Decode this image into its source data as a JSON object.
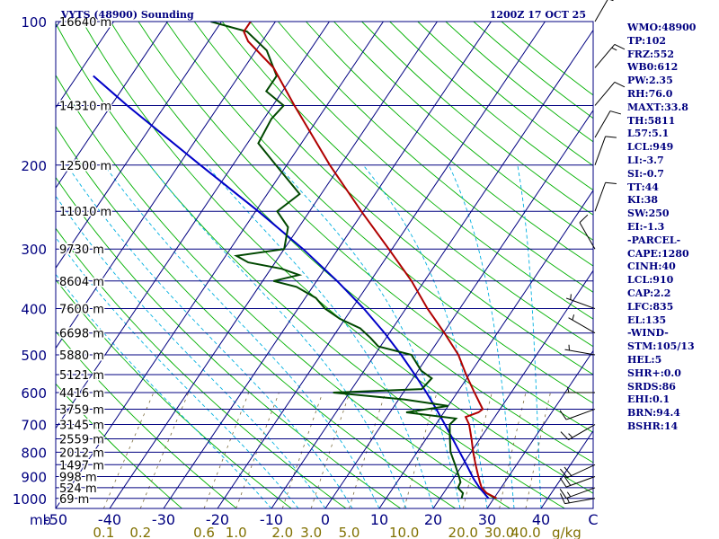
{
  "chart_data": {
    "type": "skew-t",
    "title": "VYTS (48900) Sounding",
    "time": "1200Z 17 OCT 25",
    "pressure_levels": [
      {
        "p": 100,
        "label": "100",
        "height": "16640 m"
      },
      {
        "p": 150,
        "label": "",
        "height": "14310 m"
      },
      {
        "p": 200,
        "label": "200",
        "height": "12500 m"
      },
      {
        "p": 250,
        "label": "",
        "height": "11010 m"
      },
      {
        "p": 300,
        "label": "300",
        "height": "9730 m"
      },
      {
        "p": 350,
        "label": "",
        "height": "8604 m"
      },
      {
        "p": 400,
        "label": "400",
        "height": "7600 m"
      },
      {
        "p": 450,
        "label": "",
        "height": "6698 m"
      },
      {
        "p": 500,
        "label": "500",
        "height": "5880 m"
      },
      {
        "p": 550,
        "label": "",
        "height": "5121 m"
      },
      {
        "p": 600,
        "label": "600",
        "height": "4416 m"
      },
      {
        "p": 650,
        "label": "",
        "height": "3759 m"
      },
      {
        "p": 700,
        "label": "700",
        "height": "3145 m"
      },
      {
        "p": 750,
        "label": "",
        "height": "2559 m"
      },
      {
        "p": 800,
        "label": "800",
        "height": "2012 m"
      },
      {
        "p": 850,
        "label": "",
        "height": "1497 m"
      },
      {
        "p": 900,
        "label": "900",
        "height": "998 m"
      },
      {
        "p": 950,
        "label": "",
        "height": "524 m"
      },
      {
        "p": 1000,
        "label": "1000",
        "height": "69 m"
      }
    ],
    "pressure_unit": "mb",
    "temperature_ticks": [
      -50,
      -40,
      -30,
      -20,
      -10,
      0,
      10,
      20,
      30,
      40
    ],
    "temperature_tick_labels": [
      "-50",
      "-40",
      "-30",
      "-20",
      "-10",
      "0",
      "10",
      "20",
      "30",
      "40"
    ],
    "temperature_unit": "C",
    "mixing_ratios": [
      0.1,
      0.2,
      0.6,
      1.0,
      2.0,
      3.0,
      5.0,
      10.0,
      20.0,
      30.0,
      40.0
    ],
    "mixing_ratio_labels": [
      "0.1",
      "0.2",
      "0.6",
      "1.0",
      "2.0",
      "3.0",
      "5.0",
      "10.0",
      "20.0",
      "30.0",
      "40.0"
    ],
    "mixing_ratio_unit": "g/kg",
    "temperature_profile": [
      [
        1000,
        30.5
      ],
      [
        975,
        28.0
      ],
      [
        950,
        26.4
      ],
      [
        925,
        25.4
      ],
      [
        900,
        24.4
      ],
      [
        850,
        22.4
      ],
      [
        800,
        20.4
      ],
      [
        750,
        18.4
      ],
      [
        700,
        16.2
      ],
      [
        675,
        14.6
      ],
      [
        660,
        16.4
      ],
      [
        650,
        16.8
      ],
      [
        600,
        13.2
      ],
      [
        550,
        9.4
      ],
      [
        500,
        5.5
      ],
      [
        450,
        0.2
      ],
      [
        400,
        -6.0
      ],
      [
        350,
        -12.4
      ],
      [
        300,
        -20.6
      ],
      [
        250,
        -30.4
      ],
      [
        200,
        -42.0
      ],
      [
        150,
        -56.0
      ],
      [
        125,
        -64.6
      ],
      [
        110,
        -72.6
      ],
      [
        105,
        -74.6
      ],
      [
        100,
        -74.6
      ]
    ],
    "dewpoint_profile": [
      [
        1000,
        24.0
      ],
      [
        975,
        23.6
      ],
      [
        950,
        22.0
      ],
      [
        925,
        21.8
      ],
      [
        900,
        20.8
      ],
      [
        850,
        18.6
      ],
      [
        800,
        16.2
      ],
      [
        750,
        14.4
      ],
      [
        700,
        12.6
      ],
      [
        680,
        13.0
      ],
      [
        660,
        3.0
      ],
      [
        640,
        10.0
      ],
      [
        620,
        1.0
      ],
      [
        600,
        -13.0
      ],
      [
        590,
        3.0
      ],
      [
        560,
        3.5
      ],
      [
        540,
        0.6
      ],
      [
        500,
        -3.2
      ],
      [
        480,
        -10.4
      ],
      [
        460,
        -13.0
      ],
      [
        440,
        -16.0
      ],
      [
        420,
        -21.0
      ],
      [
        400,
        -25.0
      ],
      [
        380,
        -28.0
      ],
      [
        360,
        -33.0
      ],
      [
        350,
        -38.0
      ],
      [
        340,
        -34.0
      ],
      [
        330,
        -38.0
      ],
      [
        320,
        -45.0
      ],
      [
        310,
        -48.0
      ],
      [
        300,
        -40.0
      ],
      [
        270,
        -42.0
      ],
      [
        250,
        -46.0
      ],
      [
        230,
        -44.0
      ],
      [
        200,
        -52.0
      ],
      [
        180,
        -58.0
      ],
      [
        160,
        -58.6
      ],
      [
        150,
        -58.0
      ],
      [
        140,
        -63.0
      ],
      [
        130,
        -63.0
      ],
      [
        115,
        -68.0
      ],
      [
        105,
        -74.0
      ],
      [
        100,
        -82.0
      ]
    ],
    "parcel_profile": [
      [
        1000,
        29.0
      ],
      [
        950,
        26.0
      ],
      [
        910,
        23.8
      ],
      [
        900,
        23.3
      ],
      [
        850,
        20.7
      ],
      [
        800,
        17.9
      ],
      [
        750,
        14.9
      ],
      [
        700,
        11.7
      ],
      [
        650,
        8.2
      ],
      [
        600,
        4.3
      ],
      [
        550,
        -0.1
      ],
      [
        500,
        -5.1
      ],
      [
        450,
        -10.9
      ],
      [
        400,
        -17.8
      ],
      [
        350,
        -26.2
      ],
      [
        300,
        -36.5
      ],
      [
        250,
        -49.5
      ],
      [
        200,
        -66.0
      ],
      [
        150,
        -87.0
      ],
      [
        130,
        -97.0
      ]
    ],
    "wind_barbs": [
      {
        "p": 1000,
        "dir": 260,
        "kt": 15
      },
      {
        "p": 950,
        "dir": 250,
        "kt": 15
      },
      {
        "p": 900,
        "dir": 250,
        "kt": 20
      },
      {
        "p": 850,
        "dir": 245,
        "kt": 20
      },
      {
        "p": 700,
        "dir": 240,
        "kt": 15
      },
      {
        "p": 650,
        "dir": 250,
        "kt": 10
      },
      {
        "p": 600,
        "dir": 270,
        "kt": 5
      },
      {
        "p": 500,
        "dir": 280,
        "kt": 5
      },
      {
        "p": 450,
        "dir": 300,
        "kt": 5
      },
      {
        "p": 400,
        "dir": 290,
        "kt": 5
      },
      {
        "p": 300,
        "dir": 330,
        "kt": 10
      },
      {
        "p": 250,
        "dir": 20,
        "kt": 10
      },
      {
        "p": 200,
        "dir": 20,
        "kt": 10
      },
      {
        "p": 175,
        "dir": 30,
        "kt": 10
      },
      {
        "p": 150,
        "dir": 40,
        "kt": 10
      },
      {
        "p": 125,
        "dir": 40,
        "kt": 15
      },
      {
        "p": 100,
        "dir": 30,
        "kt": 15
      }
    ]
  },
  "indices": [
    "WMO:48900",
    "TP:102",
    "FRZ:552",
    "WB0:612",
    "PW:2.35",
    "RH:76.0",
    "MAXT:33.8",
    "TH:5811",
    "L57:5.1",
    "LCL:949",
    "LI:-3.7",
    "SI:-0.7",
    "TT:44",
    "KI:38",
    "SW:250",
    "EI:-1.3",
    "-PARCEL-",
    "CAPE:1280",
    "CINH:40",
    "LCL:910",
    "CAP:2.2",
    "LFC:835",
    "EL:135",
    "-WIND-",
    "STM:105/13",
    "HEL:5",
    "SHR+:0.0",
    "SRDS:86",
    "EHI:0.1",
    "BRN:94.4",
    "BSHR:14"
  ],
  "colors": {
    "navy": "#000080",
    "isotherm": "#000080",
    "dry_adiabat": "#00b000",
    "moist_adiabat": "#00b0e0",
    "mixing_ratio": "#7a6a3a",
    "temperature": "#b00000",
    "dewpoint": "#004800",
    "parcel": "#0000c8",
    "mixing_label": "#807000",
    "text": "#000000"
  }
}
